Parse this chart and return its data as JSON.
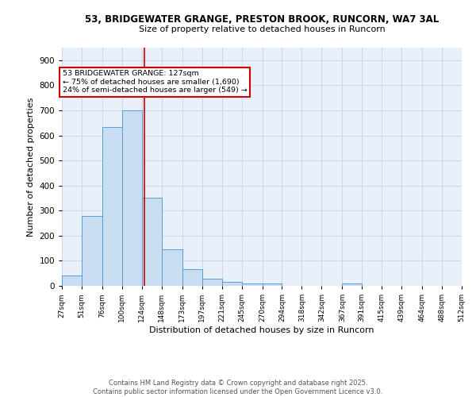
{
  "title1": "53, BRIDGEWATER GRANGE, PRESTON BROOK, RUNCORN, WA7 3AL",
  "title2": "Size of property relative to detached houses in Runcorn",
  "xlabel": "Distribution of detached houses by size in Runcorn",
  "ylabel": "Number of detached properties",
  "bar_edges": [
    27,
    51,
    76,
    100,
    124,
    148,
    173,
    197,
    221,
    245,
    270,
    294,
    318,
    342,
    367,
    391,
    415,
    439,
    464,
    488,
    512
  ],
  "bar_heights": [
    42,
    280,
    632,
    700,
    353,
    145,
    65,
    30,
    15,
    10,
    8,
    0,
    0,
    0,
    8,
    0,
    0,
    0,
    0,
    0
  ],
  "bar_color": "#c9ddf0",
  "bar_edgecolor": "#5b9bd5",
  "vline_x": 127,
  "vline_color": "#cc0000",
  "annotation_title": "53 BRIDGEWATER GRANGE: 127sqm",
  "annotation_line1": "← 75% of detached houses are smaller (1,690)",
  "annotation_line2": "24% of semi-detached houses are larger (549) →",
  "annotation_box_color": "#cc0000",
  "annotation_bg": "#ffffff",
  "ylim": [
    0,
    950
  ],
  "yticks": [
    0,
    100,
    200,
    300,
    400,
    500,
    600,
    700,
    800,
    900
  ],
  "grid_color": "#d0d8e8",
  "bg_color": "#e8f0fa",
  "footer1": "Contains HM Land Registry data © Crown copyright and database right 2025.",
  "footer2": "Contains public sector information licensed under the Open Government Licence v3.0.",
  "tick_labels": [
    "27sqm",
    "51sqm",
    "76sqm",
    "100sqm",
    "124sqm",
    "148sqm",
    "173sqm",
    "197sqm",
    "221sqm",
    "245sqm",
    "270sqm",
    "294sqm",
    "318sqm",
    "342sqm",
    "367sqm",
    "391sqm",
    "415sqm",
    "439sqm",
    "464sqm",
    "488sqm",
    "512sqm"
  ]
}
